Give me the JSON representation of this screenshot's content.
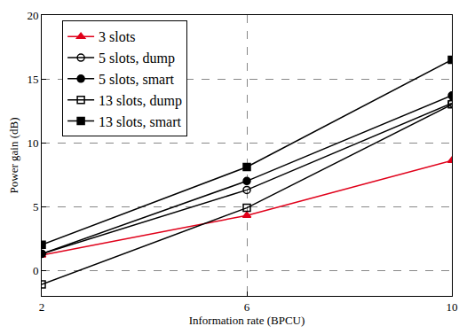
{
  "chart_data": {
    "type": "line",
    "x_label": "Information rate (BPCU)",
    "y_label": "Power gain (dB)",
    "x": [
      2,
      6,
      10
    ],
    "xlim": [
      2,
      10
    ],
    "xticks": [
      2,
      6,
      10
    ],
    "ylim": [
      -2,
      20
    ],
    "yticks": [
      0,
      5,
      10,
      15,
      20
    ],
    "grid": true,
    "legend": "upper left",
    "series": [
      {
        "name": "3 slots",
        "color": "#e0001a",
        "marker": "triangle-up",
        "values": [
          1.2,
          4.3,
          8.6
        ]
      },
      {
        "name": "5 slots, dump",
        "color": "#000000",
        "marker": "circle-open",
        "values": [
          1.3,
          6.3,
          13.1
        ]
      },
      {
        "name": "5 slots, smart",
        "color": "#000000",
        "marker": "circle",
        "values": [
          1.3,
          7.0,
          13.7
        ]
      },
      {
        "name": "13 slots, dump",
        "color": "#000000",
        "marker": "square-open",
        "values": [
          -1.1,
          4.9,
          13.0
        ]
      },
      {
        "name": "13 slots, smart",
        "color": "#000000",
        "marker": "square",
        "values": [
          2.0,
          8.1,
          16.5
        ]
      }
    ]
  }
}
